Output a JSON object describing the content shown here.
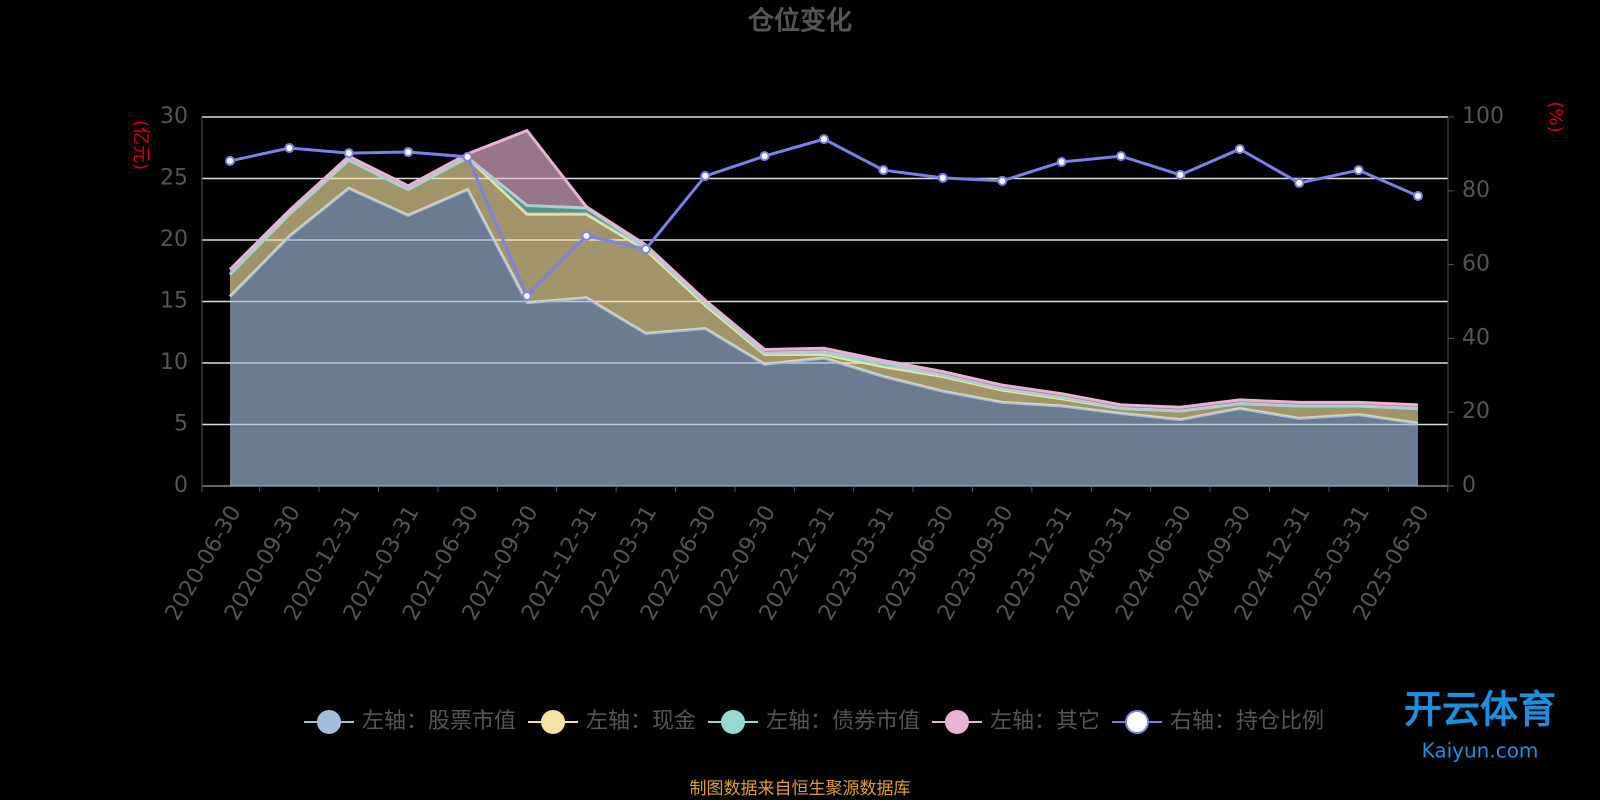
{
  "chart_data": {
    "type": "area",
    "title": "仓位变化",
    "ylabel": "(亿元)",
    "y2label": "(%)",
    "categories": [
      "2020-06-30",
      "2020-09-30",
      "2020-12-31",
      "2021-03-31",
      "2021-06-30",
      "2021-09-30",
      "2021-12-31",
      "2022-03-31",
      "2022-06-30",
      "2022-09-30",
      "2022-12-31",
      "2023-03-31",
      "2023-06-30",
      "2023-09-30",
      "2023-12-31",
      "2024-03-31",
      "2024-06-30",
      "2024-09-30",
      "2024-12-31",
      "2025-03-31",
      "2025-06-30"
    ],
    "series": [
      {
        "name": "左轴：股票市值",
        "color": "#a3bde0",
        "values": [
          15.4,
          20.3,
          24.2,
          22.0,
          24.1,
          14.9,
          15.3,
          12.4,
          12.8,
          9.9,
          10.4,
          8.9,
          7.7,
          6.8,
          6.5,
          5.9,
          5.4,
          6.3,
          5.5,
          5.8,
          5.1
        ]
      },
      {
        "name": "左轴：现金",
        "color": "#f7e3a1",
        "values": [
          1.8,
          1.8,
          2.3,
          2.1,
          2.6,
          7.2,
          6.8,
          6.8,
          1.9,
          0.8,
          0.3,
          0.8,
          1.2,
          1.0,
          0.6,
          0.4,
          0.7,
          0.4,
          1.0,
          0.7,
          1.2
        ]
      },
      {
        "name": "左轴：债券市值",
        "color": "#95d9d1",
        "values": [
          0,
          0,
          0,
          0,
          0,
          0.7,
          0.5,
          0.2,
          0.2,
          0.1,
          0.2,
          0.3,
          0.1,
          0.1,
          0.1,
          0,
          0,
          0,
          0,
          0,
          0
        ]
      },
      {
        "name": "左轴：其它",
        "color": "#e8b4d6",
        "values": [
          0.4,
          0.3,
          0.3,
          0.3,
          0.3,
          6.1,
          0.1,
          0.2,
          0.2,
          0.3,
          0.3,
          0.2,
          0.3,
          0.3,
          0.3,
          0.3,
          0.3,
          0.3,
          0.3,
          0.3,
          0.3
        ]
      },
      {
        "name": "右轴：持仓比例",
        "color": "#7b80ea",
        "axis": "y2",
        "values": [
          88.1,
          91.6,
          90.2,
          90.5,
          89.2,
          51.5,
          67.8,
          64.2,
          84.0,
          89.4,
          94.0,
          85.6,
          83.5,
          82.7,
          87.8,
          89.4,
          84.3,
          91.3,
          82.1,
          85.6,
          78.6
        ]
      }
    ],
    "ylim": [
      0,
      30
    ],
    "yticks": [
      0,
      5,
      10,
      15,
      20,
      25,
      30
    ],
    "y2lim": [
      0,
      100
    ],
    "y2ticks": [
      0,
      20,
      40,
      60,
      80,
      100
    ],
    "grid": true,
    "source": "制图数据来自恒生聚源数据库",
    "watermark": [
      "开云体育",
      "Kaiyun.com"
    ]
  }
}
